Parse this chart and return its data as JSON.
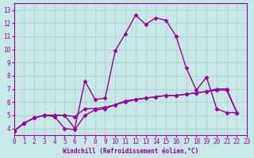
{
  "xlabel": "Windchill (Refroidissement éolien,°C)",
  "xlim": [
    0,
    23
  ],
  "ylim": [
    3.5,
    13.5
  ],
  "xticks": [
    0,
    1,
    2,
    3,
    4,
    5,
    6,
    7,
    8,
    9,
    10,
    11,
    12,
    13,
    14,
    15,
    16,
    17,
    18,
    19,
    20,
    21,
    22,
    23
  ],
  "yticks": [
    4,
    5,
    6,
    7,
    8,
    9,
    10,
    11,
    12,
    13
  ],
  "bg_color": "#c8e8e8",
  "line_color": "#990099",
  "grid_color": "#aacccc",
  "x_series": [
    0,
    1,
    2,
    3,
    4,
    5,
    6,
    7,
    8,
    9,
    10,
    11,
    12,
    13,
    14,
    15,
    16,
    17,
    18,
    19,
    20,
    21,
    22
  ],
  "series": [
    [
      3.8,
      4.4,
      4.8,
      5.0,
      5.0,
      5.0,
      4.0,
      7.6,
      6.2,
      6.3,
      9.9,
      11.2,
      12.6,
      11.9,
      12.4,
      12.2,
      11.0,
      8.6,
      6.9,
      7.9,
      5.5,
      5.2,
      5.2
    ],
    [
      3.8,
      4.4,
      4.8,
      5.0,
      5.0,
      5.0,
      4.9,
      5.5,
      5.5,
      5.6,
      5.8,
      6.1,
      6.2,
      6.3,
      6.4,
      6.5,
      6.5,
      6.6,
      6.7,
      6.8,
      6.9,
      6.9,
      5.2
    ],
    [
      3.8,
      4.4,
      4.8,
      5.0,
      4.9,
      4.0,
      3.9,
      5.0,
      5.4,
      5.5,
      5.8,
      6.0,
      6.2,
      6.3,
      6.4,
      6.5,
      6.5,
      6.6,
      6.7,
      6.8,
      7.0,
      7.0,
      5.2
    ]
  ]
}
